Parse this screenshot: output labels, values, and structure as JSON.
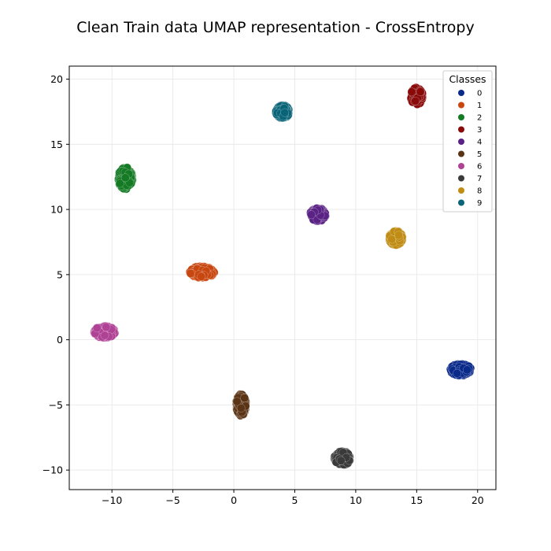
{
  "chart_data": {
    "type": "scatter",
    "title": "Clean Train data UMAP representation - CrossEntropy",
    "xlabel": "",
    "ylabel": "",
    "xlim": [
      -13.5,
      21.5
    ],
    "ylim": [
      -11.5,
      21.0
    ],
    "xticks": [
      -10,
      -5,
      0,
      5,
      10,
      15,
      20
    ],
    "yticks": [
      -10,
      -5,
      0,
      5,
      10,
      15,
      20
    ],
    "grid": true,
    "legend": {
      "title": "Classes",
      "placement": "top-right"
    },
    "series": [
      {
        "name": "0",
        "color": "#0a2a8a",
        "center": [
          18.6,
          -2.3
        ],
        "spread": [
          0.85,
          0.45
        ]
      },
      {
        "name": "1",
        "color": "#c8460f",
        "center": [
          -2.6,
          5.2
        ],
        "spread": [
          1.0,
          0.45
        ]
      },
      {
        "name": "2",
        "color": "#147a24",
        "center": [
          -8.9,
          12.4
        ],
        "spread": [
          0.6,
          0.85
        ]
      },
      {
        "name": "3",
        "color": "#8a0a0a",
        "center": [
          15.0,
          18.7
        ],
        "spread": [
          0.5,
          0.65
        ]
      },
      {
        "name": "4",
        "color": "#5a2284",
        "center": [
          6.9,
          9.6
        ],
        "spread": [
          0.65,
          0.5
        ]
      },
      {
        "name": "5",
        "color": "#5a3414",
        "center": [
          0.6,
          -5.0
        ],
        "spread": [
          0.4,
          0.85
        ]
      },
      {
        "name": "6",
        "color": "#b04296",
        "center": [
          -10.6,
          0.6
        ],
        "spread": [
          0.85,
          0.45
        ]
      },
      {
        "name": "7",
        "color": "#3a3a3a",
        "center": [
          8.9,
          -9.1
        ],
        "spread": [
          0.65,
          0.55
        ]
      },
      {
        "name": "8",
        "color": "#c08c14",
        "center": [
          13.3,
          7.8
        ],
        "spread": [
          0.55,
          0.55
        ]
      },
      {
        "name": "9",
        "color": "#0a6478",
        "center": [
          4.0,
          17.5
        ],
        "spread": [
          0.55,
          0.5
        ]
      }
    ]
  }
}
